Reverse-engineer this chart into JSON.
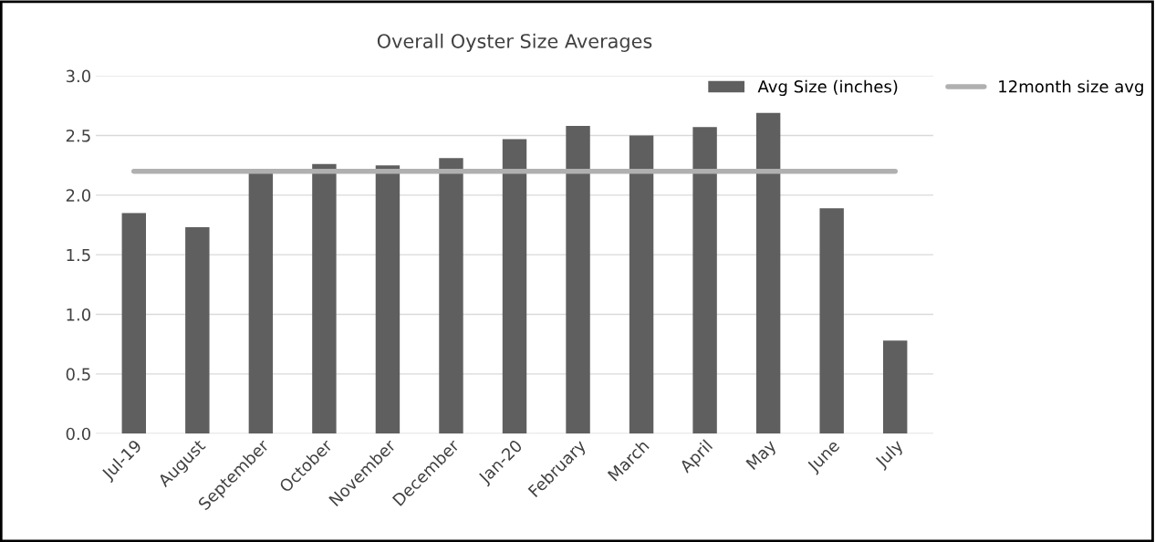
{
  "chart_data": {
    "type": "bar",
    "title": "Overall Oyster Size Averages",
    "categories": [
      "Jul-19",
      "August",
      "September",
      "October",
      "November",
      "December",
      "Jan-20",
      "February",
      "March",
      "April",
      "May",
      "June",
      "July"
    ],
    "series": [
      {
        "name": "Avg Size (inches)",
        "color": "#5f5f5f",
        "values": [
          1.85,
          1.73,
          2.2,
          2.26,
          2.25,
          2.31,
          2.47,
          2.58,
          2.5,
          2.57,
          2.69,
          1.89,
          0.78
        ]
      },
      {
        "name": "12month size avg",
        "type": "line",
        "color": "#b0b0b0",
        "values": [
          2.2,
          2.2,
          2.2,
          2.2,
          2.2,
          2.2,
          2.2,
          2.2,
          2.2,
          2.2,
          2.2,
          2.2,
          2.2
        ]
      }
    ],
    "ylim": [
      0,
      3.0
    ],
    "yticks": [
      {
        "value": 0,
        "label": "0.0"
      },
      0.5,
      {
        "value": 1,
        "label": "1.0"
      },
      1.5,
      {
        "value": 2,
        "label": "2.0"
      },
      2.5,
      {
        "value": 3,
        "label": "3.0"
      }
    ],
    "grid": "y",
    "legend": "top right"
  }
}
